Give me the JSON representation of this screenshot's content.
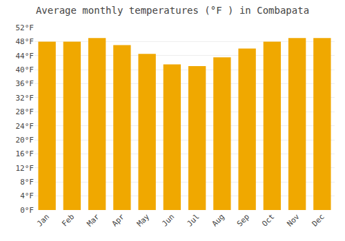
{
  "chart_data": {
    "type": "bar",
    "title": "Average monthly temperatures (°F ) in Combapata",
    "categories": [
      "Jan",
      "Feb",
      "Mar",
      "Apr",
      "May",
      "Jun",
      "Jul",
      "Aug",
      "Sep",
      "Oct",
      "Nov",
      "Dec"
    ],
    "values": [
      48,
      48,
      49,
      47,
      44.5,
      41.5,
      41,
      43.5,
      46,
      48,
      49,
      49
    ],
    "color": "#F0A800",
    "ylim": [
      0,
      52
    ],
    "yticks": [
      {
        "value": 0,
        "label": "0°F"
      },
      {
        "value": 4,
        "label": "4°F"
      },
      {
        "value": 8,
        "label": "8°F"
      },
      {
        "value": 12,
        "label": "12°F"
      },
      {
        "value": 16,
        "label": "16°F"
      },
      {
        "value": 20,
        "label": "20°F"
      },
      {
        "value": 24,
        "label": "24°F"
      },
      {
        "value": 28,
        "label": "28°F"
      },
      {
        "value": 32,
        "label": "32°F"
      },
      {
        "value": 36,
        "label": "36°F"
      },
      {
        "value": 40,
        "label": "40°F"
      },
      {
        "value": 44,
        "label": "44°F"
      },
      {
        "value": 48,
        "label": "48°F"
      },
      {
        "value": 52,
        "label": "52°F"
      }
    ],
    "grid": true
  }
}
